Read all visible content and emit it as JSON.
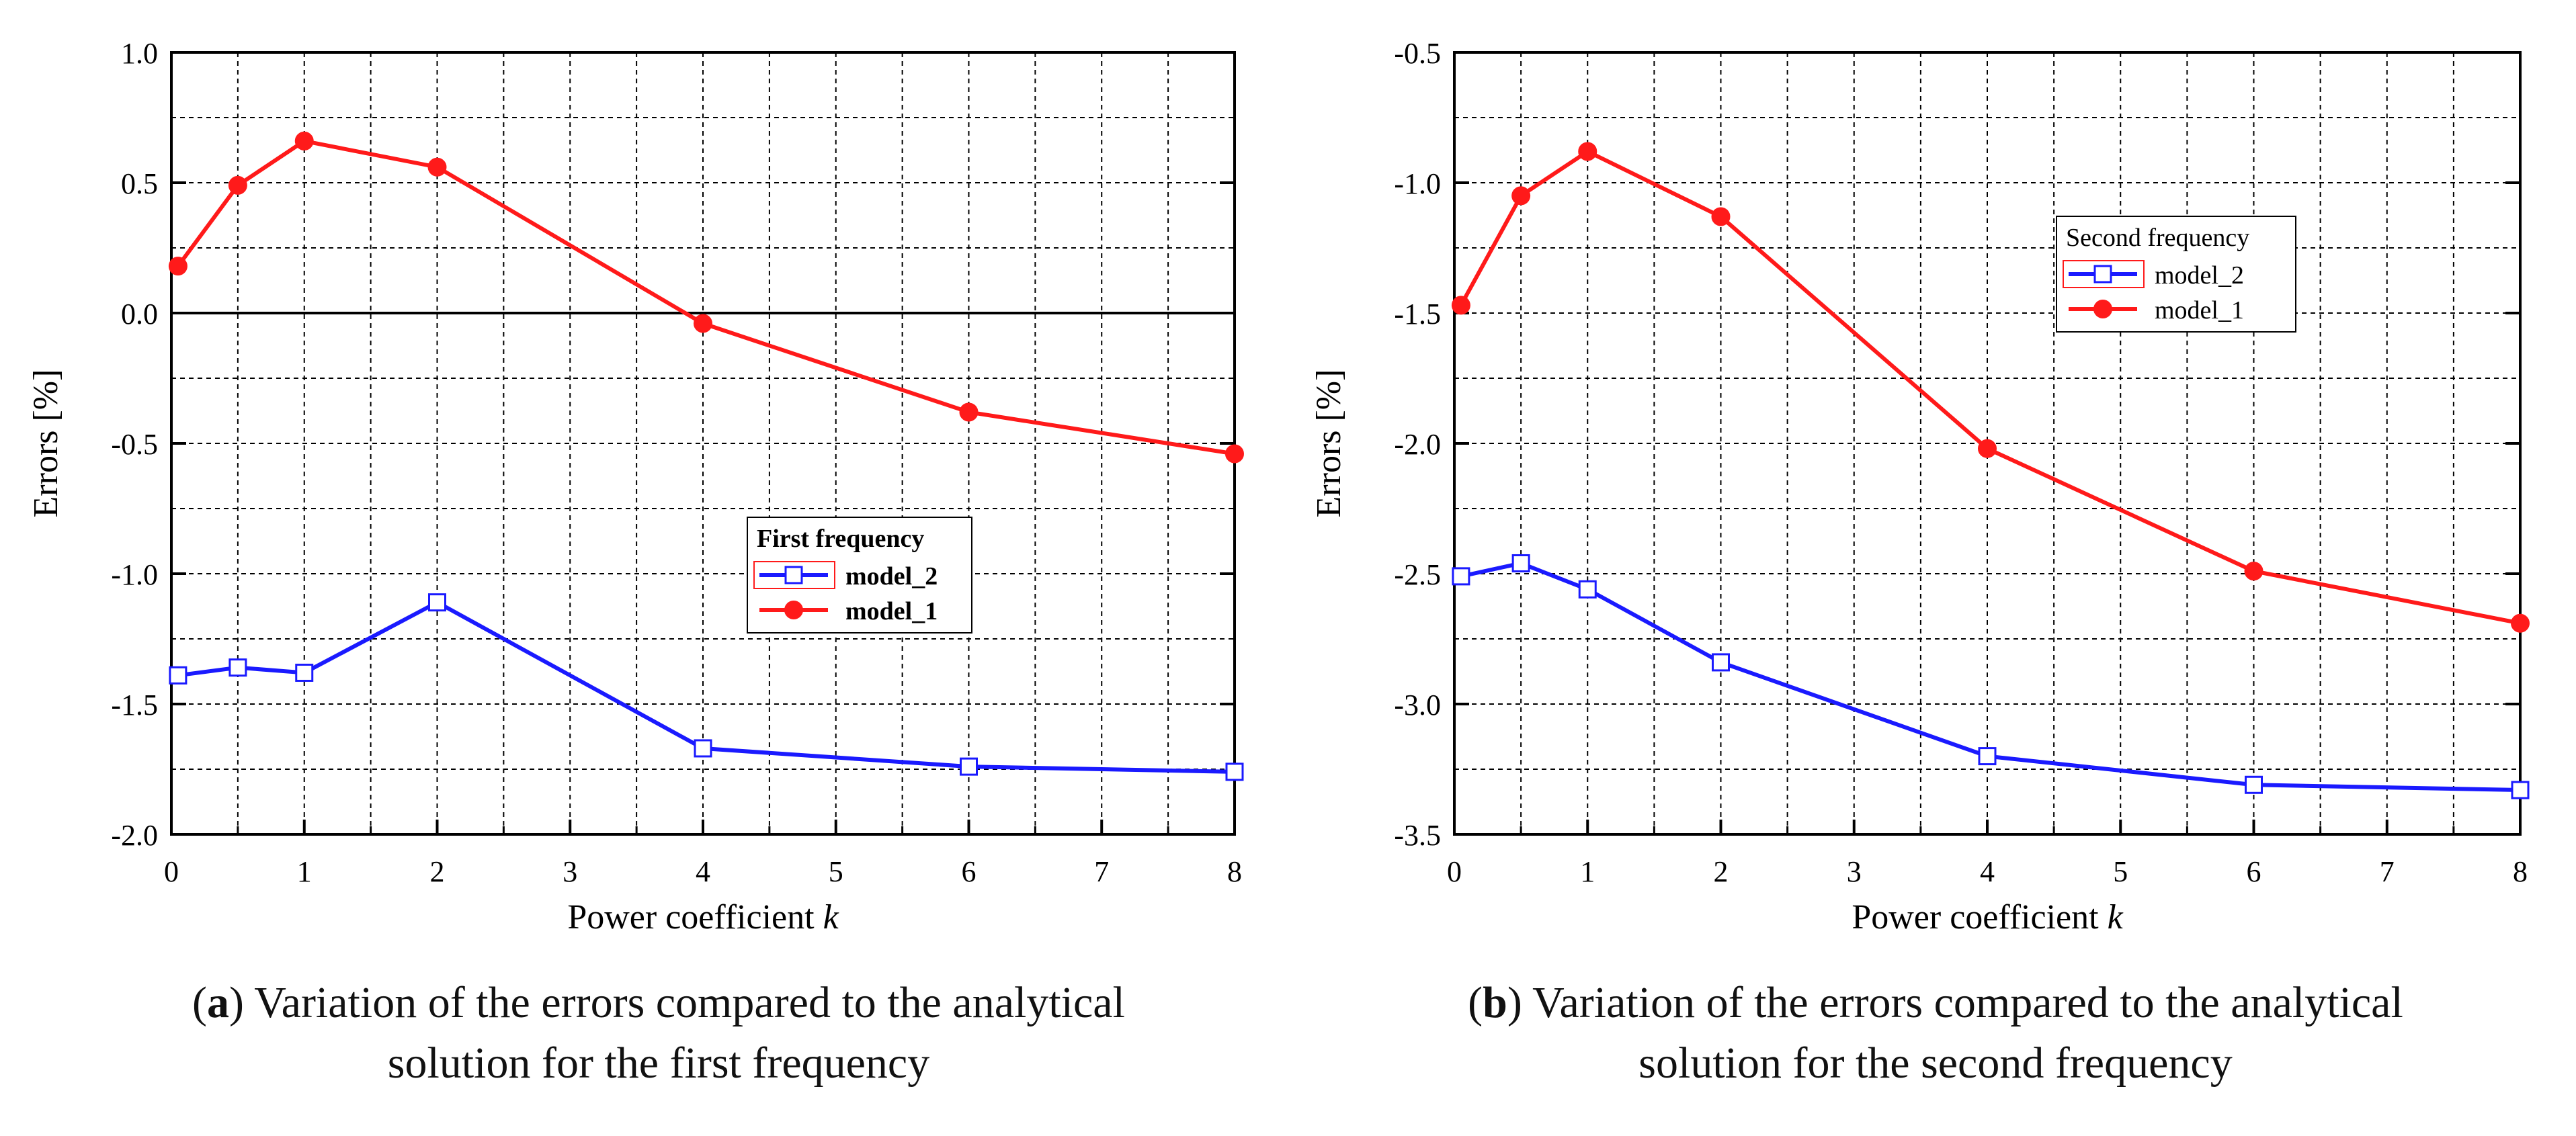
{
  "colors": {
    "model_1": "#ff1a1a",
    "model_2": "#1a1aff",
    "axis": "#000000",
    "grid": "#000000"
  },
  "chart_data": [
    {
      "id": "a",
      "type": "line",
      "title": "",
      "xlabel": "Power coefficient",
      "xlabel_var": "k",
      "ylabel": "Errors [%]",
      "xlim": [
        0,
        8
      ],
      "ylim": [
        -2.0,
        1.0
      ],
      "xticks": [
        0,
        1,
        2,
        3,
        4,
        5,
        6,
        7,
        8
      ],
      "xtick_labels": [
        "0",
        "1",
        "2",
        "3",
        "4",
        "5",
        "6",
        "7",
        "8"
      ],
      "yticks": [
        -2.0,
        -1.5,
        -1.0,
        -0.5,
        0.0,
        0.5,
        1.0
      ],
      "ytick_labels": [
        "-2.0",
        "-1.5",
        "-1.0",
        "-0.5",
        "0.0",
        "0.5",
        "1.0"
      ],
      "grid": true,
      "zero_line": true,
      "legend": {
        "title": "First frequency",
        "placement": "center-right"
      },
      "series": [
        {
          "name": "model_2",
          "marker": "open-square",
          "x": [
            0.05,
            0.5,
            1,
            2,
            4,
            6,
            8
          ],
          "y": [
            -1.39,
            -1.36,
            -1.38,
            -1.11,
            -1.67,
            -1.74,
            -1.76
          ]
        },
        {
          "name": "model_1",
          "marker": "filled-circle",
          "x": [
            0.05,
            0.5,
            1,
            2,
            4,
            6,
            8
          ],
          "y": [
            0.18,
            0.49,
            0.66,
            0.56,
            -0.04,
            -0.38,
            -0.54
          ]
        }
      ]
    },
    {
      "id": "b",
      "type": "line",
      "title": "",
      "xlabel": "Power coefficient",
      "xlabel_var": "k",
      "ylabel": "Errors [%]",
      "xlim": [
        0,
        8
      ],
      "ylim": [
        -3.5,
        -0.5
      ],
      "xticks": [
        0,
        1,
        2,
        3,
        4,
        5,
        6,
        7,
        8
      ],
      "xtick_labels": [
        "0",
        "1",
        "2",
        "3",
        "4",
        "5",
        "6",
        "7",
        "8"
      ],
      "yticks": [
        -3.5,
        -3.0,
        -2.5,
        -2.0,
        -1.5,
        -1.0,
        -0.5
      ],
      "ytick_labels": [
        "-3.5",
        "-3.0",
        "-2.5",
        "-2.0",
        "-1.5",
        "-1.0",
        "-0.5"
      ],
      "grid": true,
      "zero_line": false,
      "legend": {
        "title": "Second frequency",
        "placement": "top-center"
      },
      "series": [
        {
          "name": "model_2",
          "marker": "open-square",
          "x": [
            0.05,
            0.5,
            1,
            2,
            4,
            6,
            8
          ],
          "y": [
            -2.51,
            -2.46,
            -2.56,
            -2.84,
            -3.2,
            -3.31,
            -3.33
          ]
        },
        {
          "name": "model_1",
          "marker": "filled-circle",
          "x": [
            0.05,
            0.5,
            1,
            2,
            4,
            6,
            8
          ],
          "y": [
            -1.47,
            -1.05,
            -0.88,
            -1.13,
            -2.02,
            -2.49,
            -2.69
          ]
        }
      ]
    }
  ],
  "captions": [
    {
      "label": "a",
      "line1": ") Variation of the errors compared to the analytical",
      "line2": "solution for the first frequency"
    },
    {
      "label": "b",
      "line1": ") Variation of the errors compared to the analytical",
      "line2": "solution for the second frequency"
    }
  ]
}
